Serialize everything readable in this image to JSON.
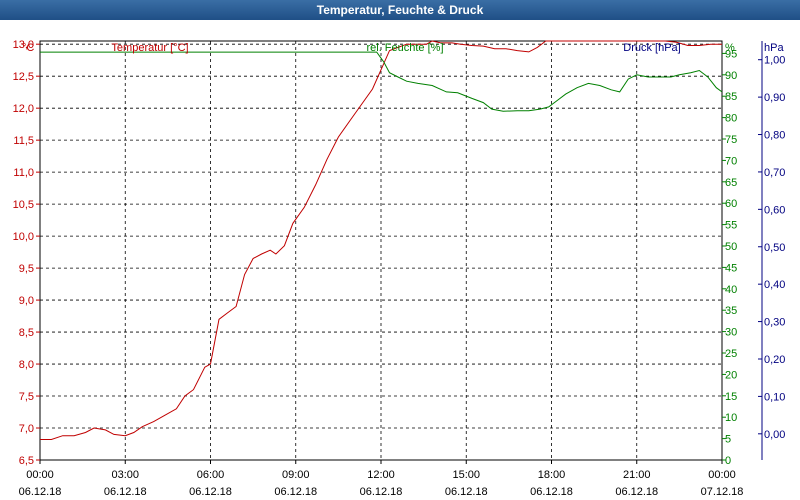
{
  "window": {
    "title": "Temperatur, Feuchte & Druck"
  },
  "colors": {
    "temperature": "#c00000",
    "humidity": "#008000",
    "pressure": "#000080",
    "grid": "#000000"
  },
  "chart_data": {
    "type": "line",
    "title": "Temperatur, Feuchte & Druck",
    "grid": true,
    "x": {
      "ticks": [
        {
          "time": "00:00",
          "date": "06.12.18"
        },
        {
          "time": "03:00",
          "date": "06.12.18"
        },
        {
          "time": "06:00",
          "date": "06.12.18"
        },
        {
          "time": "09:00",
          "date": "06.12.18"
        },
        {
          "time": "12:00",
          "date": "06.12.18"
        },
        {
          "time": "15:00",
          "date": "06.12.18"
        },
        {
          "time": "18:00",
          "date": "06.12.18"
        },
        {
          "time": "21:00",
          "date": "06.12.18"
        },
        {
          "time": "00:00",
          "date": "07.12.18"
        }
      ],
      "range_hours": [
        0,
        24
      ]
    },
    "axes": {
      "temperature": {
        "label": "Temperatur [°C]",
        "unit": "°C",
        "range": [
          6.5,
          13.0
        ],
        "ticks": [
          "6,5",
          "7,0",
          "7,5",
          "8,0",
          "8,5",
          "9,0",
          "9,5",
          "10,0",
          "10,5",
          "11,0",
          "11,5",
          "12,0",
          "12,5",
          "13,0"
        ]
      },
      "humidity": {
        "label": "rel. Feuchte [%]",
        "unit": "%",
        "range": [
          0,
          95
        ],
        "ticks": [
          "0",
          "5",
          "10",
          "15",
          "20",
          "25",
          "30",
          "35",
          "40",
          "45",
          "50",
          "55",
          "60",
          "65",
          "70",
          "75",
          "80",
          "85",
          "90",
          "95"
        ]
      },
      "pressure": {
        "label": "Druck [hPa]",
        "unit": "hPa",
        "range": [
          -0.05,
          1.0
        ],
        "ticks": [
          "0,00",
          "0,10",
          "0,20",
          "0,30",
          "0,40",
          "0,50",
          "0,60",
          "0,70",
          "0,80",
          "0,90",
          "1,00"
        ]
      }
    },
    "series": [
      {
        "name": "Temperatur [°C]",
        "axis": "temperature",
        "points": [
          [
            0.0,
            6.82
          ],
          [
            0.4,
            6.82
          ],
          [
            0.8,
            6.88
          ],
          [
            1.2,
            6.88
          ],
          [
            1.6,
            6.93
          ],
          [
            1.9,
            7.0
          ],
          [
            2.3,
            6.97
          ],
          [
            2.6,
            6.9
          ],
          [
            3.0,
            6.88
          ],
          [
            3.3,
            6.93
          ],
          [
            3.6,
            7.02
          ],
          [
            4.0,
            7.1
          ],
          [
            4.4,
            7.2
          ],
          [
            4.8,
            7.3
          ],
          [
            5.1,
            7.5
          ],
          [
            5.4,
            7.6
          ],
          [
            5.8,
            7.95
          ],
          [
            6.0,
            8.0
          ],
          [
            6.3,
            8.7
          ],
          [
            6.6,
            8.8
          ],
          [
            6.9,
            8.9
          ],
          [
            7.2,
            9.4
          ],
          [
            7.5,
            9.65
          ],
          [
            7.8,
            9.72
          ],
          [
            8.1,
            9.78
          ],
          [
            8.3,
            9.72
          ],
          [
            8.6,
            9.85
          ],
          [
            8.9,
            10.2
          ],
          [
            9.3,
            10.45
          ],
          [
            9.7,
            10.8
          ],
          [
            10.1,
            11.2
          ],
          [
            10.5,
            11.55
          ],
          [
            10.9,
            11.8
          ],
          [
            11.3,
            12.05
          ],
          [
            11.7,
            12.3
          ],
          [
            12.0,
            12.6
          ],
          [
            12.3,
            12.9
          ],
          [
            12.6,
            12.95
          ],
          [
            12.9,
            13.0
          ],
          [
            13.2,
            13.0
          ],
          [
            13.6,
            13.0
          ],
          [
            13.8,
            13.05
          ],
          [
            14.1,
            13.02
          ],
          [
            14.5,
            13.02
          ],
          [
            14.8,
            13.0
          ],
          [
            15.2,
            12.98
          ],
          [
            15.6,
            12.97
          ],
          [
            16.0,
            12.93
          ],
          [
            16.4,
            12.93
          ],
          [
            16.8,
            12.9
          ],
          [
            17.2,
            12.88
          ],
          [
            17.5,
            12.95
          ],
          [
            17.8,
            13.05
          ],
          [
            18.0,
            13.1
          ],
          [
            18.3,
            13.08
          ],
          [
            18.6,
            13.05
          ],
          [
            18.9,
            13.05
          ],
          [
            19.2,
            13.05
          ],
          [
            19.5,
            13.1
          ],
          [
            19.9,
            13.1
          ],
          [
            20.3,
            13.12
          ],
          [
            20.6,
            13.05
          ],
          [
            20.9,
            13.08
          ],
          [
            21.3,
            13.05
          ],
          [
            21.7,
            13.1
          ],
          [
            22.0,
            13.05
          ],
          [
            22.4,
            13.03
          ],
          [
            22.8,
            12.98
          ],
          [
            23.2,
            12.98
          ],
          [
            23.6,
            13.0
          ],
          [
            24.0,
            13.0
          ]
        ]
      },
      {
        "name": "rel. Feuchte [%]",
        "axis": "humidity",
        "points": [
          [
            0.0,
            95.3
          ],
          [
            11.85,
            95.3
          ],
          [
            12.1,
            93.0
          ],
          [
            12.3,
            90.5
          ],
          [
            12.6,
            89.5
          ],
          [
            12.9,
            88.5
          ],
          [
            13.3,
            88.0
          ],
          [
            13.8,
            87.5
          ],
          [
            14.3,
            86.0
          ],
          [
            14.7,
            85.8
          ],
          [
            15.2,
            84.5
          ],
          [
            15.6,
            83.5
          ],
          [
            15.9,
            82.0
          ],
          [
            16.3,
            81.5
          ],
          [
            16.8,
            81.6
          ],
          [
            17.2,
            81.6
          ],
          [
            17.6,
            82.0
          ],
          [
            17.9,
            82.5
          ],
          [
            18.2,
            84.0
          ],
          [
            18.5,
            85.5
          ],
          [
            18.9,
            87.0
          ],
          [
            19.3,
            88.0
          ],
          [
            19.7,
            87.5
          ],
          [
            20.1,
            86.5
          ],
          [
            20.4,
            86.0
          ],
          [
            20.7,
            89.0
          ],
          [
            21.0,
            90.0
          ],
          [
            21.4,
            89.5
          ],
          [
            21.8,
            89.5
          ],
          [
            22.2,
            89.5
          ],
          [
            22.5,
            90.0
          ],
          [
            22.9,
            90.5
          ],
          [
            23.2,
            91.0
          ],
          [
            23.5,
            89.5
          ],
          [
            23.8,
            87.0
          ],
          [
            24.0,
            86.0
          ]
        ]
      }
    ]
  }
}
